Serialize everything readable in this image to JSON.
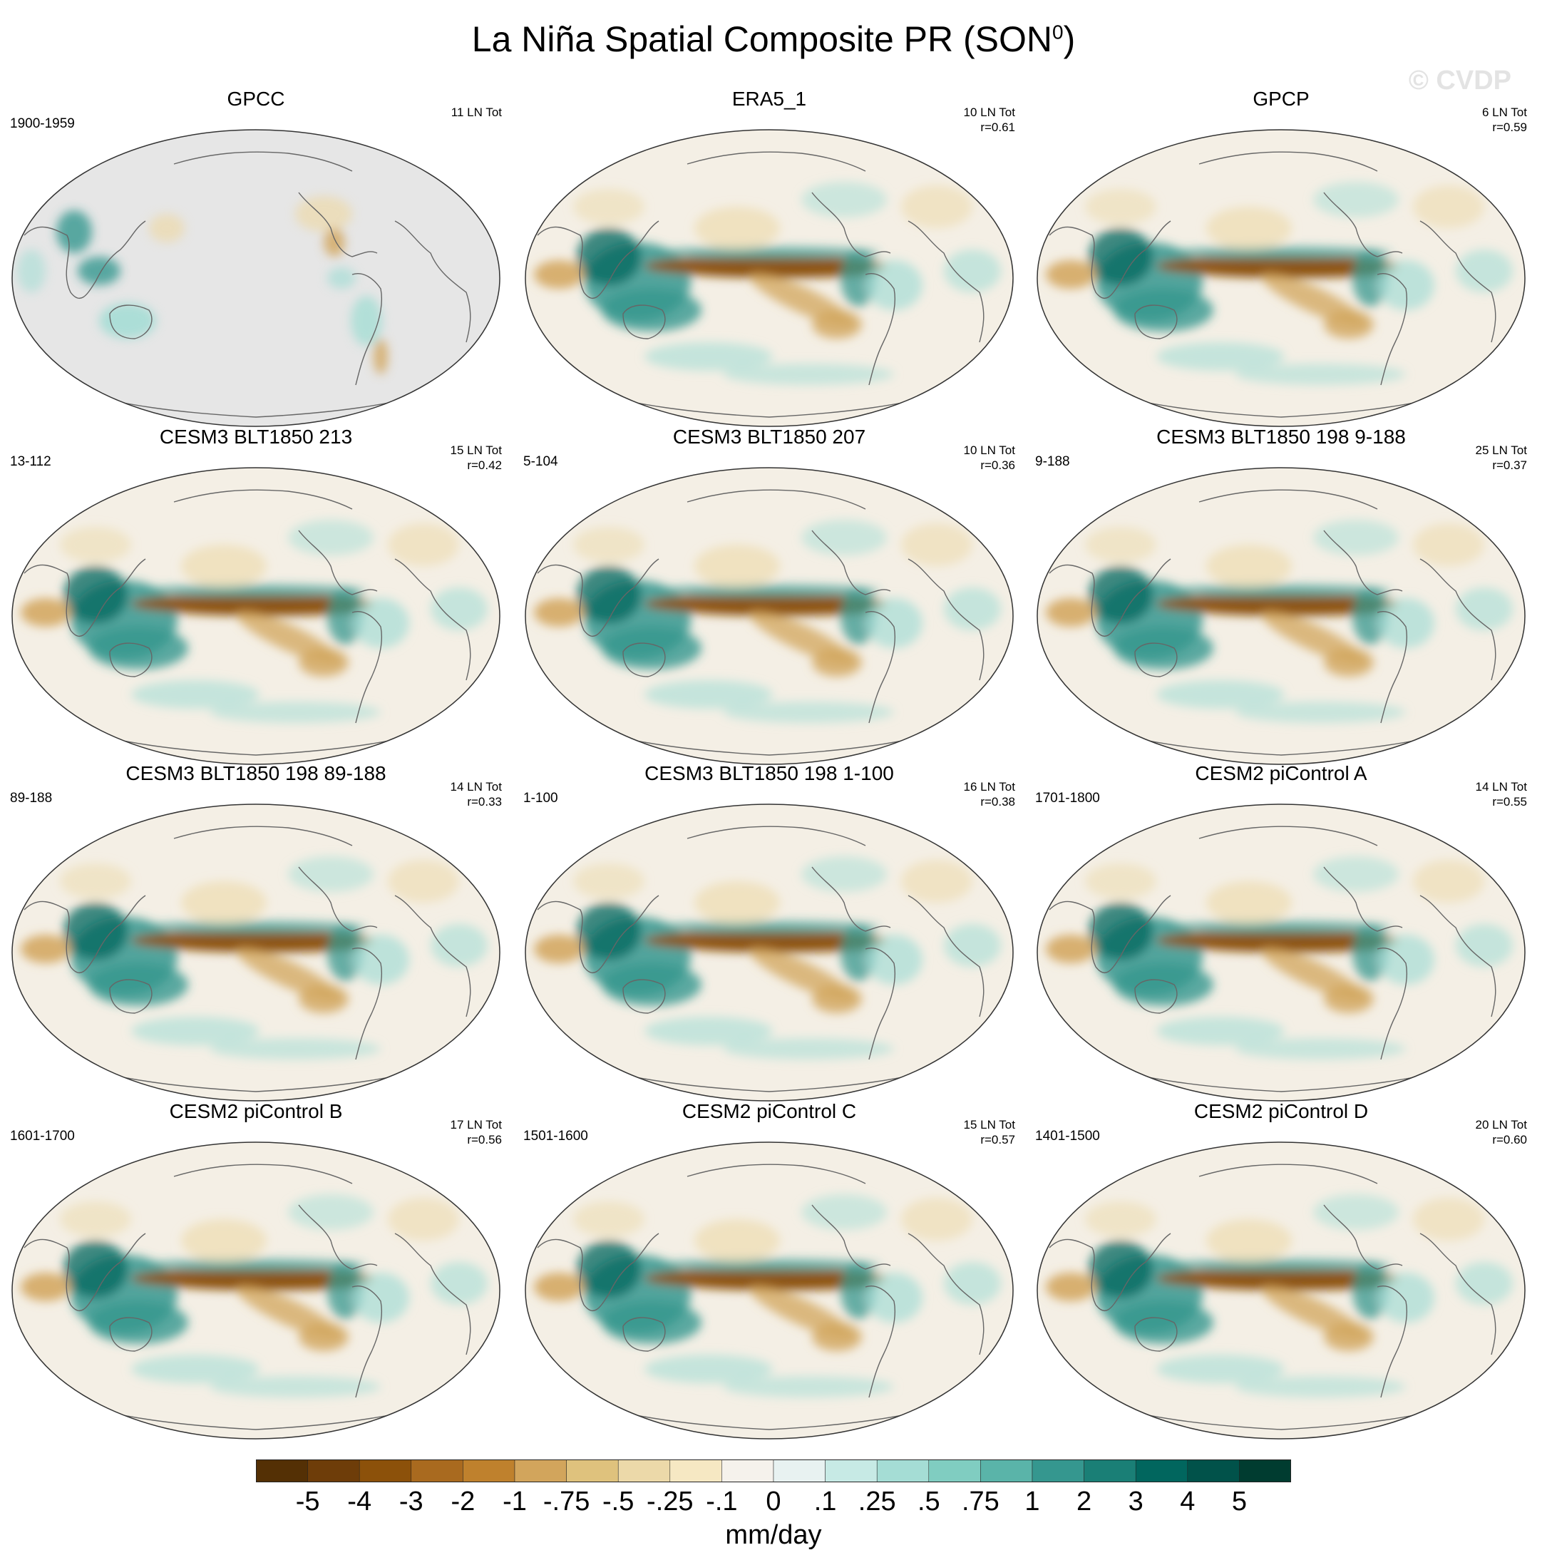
{
  "figure": {
    "title_main": "La Niña Spatial Composite PR (SON",
    "title_sup": "0",
    "title_end": ")",
    "watermark": "© CVDP"
  },
  "panels": [
    {
      "title": "GPCC",
      "left": "1900-1959",
      "right1": "11 LN Tot",
      "right2": "",
      "masked": true
    },
    {
      "title": "ERA5_1",
      "left": "",
      "right1": "10 LN Tot",
      "right2": "r=0.61",
      "masked": false
    },
    {
      "title": "GPCP",
      "left": "",
      "right1": "6 LN Tot",
      "right2": "r=0.59",
      "masked": false
    },
    {
      "title": "CESM3 BLT1850 213",
      "left": "13-112",
      "right1": "15 LN Tot",
      "right2": "r=0.42",
      "masked": false
    },
    {
      "title": "CESM3 BLT1850 207",
      "left": "5-104",
      "right1": "10 LN Tot",
      "right2": "r=0.36",
      "masked": false
    },
    {
      "title": "CESM3 BLT1850 198 9-188",
      "left": "9-188",
      "right1": "25 LN Tot",
      "right2": "r=0.37",
      "masked": false
    },
    {
      "title": "CESM3 BLT1850 198 89-188",
      "left": "89-188",
      "right1": "14 LN Tot",
      "right2": "r=0.33",
      "masked": false
    },
    {
      "title": "CESM3 BLT1850 198 1-100",
      "left": "1-100",
      "right1": "16 LN Tot",
      "right2": "r=0.38",
      "masked": false
    },
    {
      "title": "CESM2 piControl A",
      "left": "1701-1800",
      "right1": "14 LN Tot",
      "right2": "r=0.55",
      "masked": false
    },
    {
      "title": "CESM2 piControl B",
      "left": "1601-1700",
      "right1": "17 LN Tot",
      "right2": "r=0.56",
      "masked": false
    },
    {
      "title": "CESM2 piControl C",
      "left": "1501-1600",
      "right1": "15 LN Tot",
      "right2": "r=0.57",
      "masked": false
    },
    {
      "title": "CESM2 piControl D",
      "left": "1401-1500",
      "right1": "20 LN Tot",
      "right2": "r=0.60",
      "masked": false
    }
  ],
  "colorbar": {
    "labels": [
      "-5",
      "-4",
      "-3",
      "-2",
      "-1",
      "-.75",
      "-.5",
      "-.25",
      "-.1",
      "0",
      ".1",
      ".25",
      ".5",
      ".75",
      "1",
      "2",
      "3",
      "4",
      "5"
    ],
    "colors": [
      "#543005",
      "#6e3d09",
      "#8c510a",
      "#a96a1f",
      "#bf812d",
      "#d2a55c",
      "#dfc27d",
      "#ecd9a9",
      "#f6e8c3",
      "#f5f2ec",
      "#e8f2f1",
      "#c7eae5",
      "#a5ddd5",
      "#80cdc1",
      "#5ab4a9",
      "#35978f",
      "#1a7f76",
      "#01665e",
      "#01524a",
      "#003c30"
    ],
    "units": "mm/day"
  },
  "map_colors": {
    "ocean_bg": "#f4efe5",
    "mask_gray": "#e6e6e6",
    "coast": "#666666",
    "dry_strong": "#8c510a",
    "dry_mid": "#d2a55c",
    "dry_weak": "#ecd9a9",
    "wet_strong": "#01665e",
    "wet_mid": "#35978f",
    "wet_weak": "#a5ddd5"
  }
}
